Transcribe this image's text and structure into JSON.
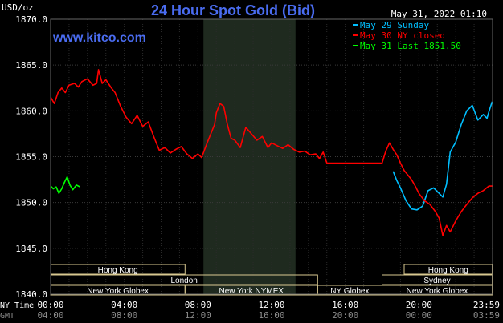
{
  "chart_data": {
    "type": "line",
    "title": "24 Hour Spot Gold (Bid)",
    "source_label": "www.kitco.com",
    "timestamp": "May 31, 2022 01:10",
    "y_unit_label": "USD/oz",
    "ylim": [
      1840,
      1870
    ],
    "y_ticks": [
      "1870.0",
      "1865.0",
      "1860.0",
      "1855.0",
      "1850.0",
      "1845.0",
      "1840.0"
    ],
    "x_axis_label_ny": "NY Time",
    "x_axis_label_gmt": "GMT",
    "x_ticks_ny": [
      "00:00",
      "04:00",
      "08:00",
      "12:00",
      "16:00",
      "20:00",
      "23:59"
    ],
    "x_ticks_gmt": [
      "04:00",
      "08:00",
      "12:00",
      "16:00",
      "20:00",
      "00:00",
      "03:59"
    ],
    "grid": true,
    "legend_position": "top-right",
    "series": [
      {
        "name": "May 29 Sunday",
        "color": "#00bfff",
        "x": [
          18.6,
          18.8,
          19.0,
          19.3,
          19.6,
          19.9,
          20.2,
          20.5,
          20.8,
          21.1,
          21.3,
          21.5,
          21.7,
          22.0,
          22.3,
          22.6,
          22.9,
          23.2,
          23.5,
          23.7,
          23.8,
          23.98
        ],
        "y": [
          1853.4,
          1852.4,
          1851.6,
          1850.2,
          1849.3,
          1849.2,
          1849.6,
          1851.3,
          1851.6,
          1851.0,
          1850.6,
          1852.0,
          1855.5,
          1856.6,
          1858.5,
          1860.0,
          1860.6,
          1859.0,
          1859.6,
          1859.2,
          1859.9,
          1861.0
        ]
      },
      {
        "name": "May 30 NY closed",
        "color": "#ff0000",
        "x": [
          0.0,
          0.2,
          0.4,
          0.6,
          0.8,
          1.0,
          1.3,
          1.5,
          1.7,
          2.0,
          2.3,
          2.5,
          2.6,
          2.8,
          3.0,
          3.3,
          3.5,
          3.8,
          4.1,
          4.4,
          4.7,
          5.0,
          5.3,
          5.6,
          5.9,
          6.2,
          6.5,
          6.8,
          7.1,
          7.4,
          7.7,
          8.0,
          8.2,
          8.5,
          8.7,
          8.9,
          9.0,
          9.2,
          9.4,
          9.6,
          9.8,
          10.0,
          10.3,
          10.6,
          10.9,
          11.2,
          11.5,
          11.8,
          12.0,
          12.3,
          12.6,
          12.9,
          13.2,
          13.5,
          13.8,
          14.1,
          14.4,
          14.6,
          14.8,
          15.0,
          15.5,
          16.0,
          16.5,
          17.0,
          17.5,
          18.0,
          18.2,
          18.4,
          18.6,
          18.8,
          19.0,
          19.2,
          19.4,
          19.6,
          19.8,
          20.0,
          20.3,
          20.6,
          20.9,
          21.1,
          21.3,
          21.5,
          21.7,
          22.0,
          22.3,
          22.6,
          22.9,
          23.2,
          23.5,
          23.8,
          23.98
        ],
        "y": [
          1861.5,
          1860.8,
          1862.0,
          1862.5,
          1862.0,
          1862.8,
          1863.0,
          1862.6,
          1863.2,
          1863.5,
          1862.8,
          1863.0,
          1864.5,
          1863.0,
          1863.4,
          1862.5,
          1862.0,
          1860.5,
          1859.3,
          1858.6,
          1859.5,
          1858.3,
          1858.8,
          1857.2,
          1855.7,
          1856.0,
          1855.4,
          1855.8,
          1856.1,
          1855.3,
          1854.8,
          1855.3,
          1854.9,
          1856.5,
          1857.5,
          1858.5,
          1859.8,
          1860.8,
          1860.5,
          1858.5,
          1857.0,
          1856.8,
          1856.0,
          1858.2,
          1857.5,
          1856.8,
          1857.2,
          1856.0,
          1856.5,
          1856.2,
          1855.9,
          1856.3,
          1855.8,
          1855.5,
          1855.6,
          1855.2,
          1855.3,
          1854.8,
          1855.5,
          1854.3,
          1854.3,
          1854.3,
          1854.3,
          1854.3,
          1854.3,
          1854.3,
          1855.6,
          1856.5,
          1855.8,
          1855.2,
          1854.3,
          1853.5,
          1853.0,
          1852.5,
          1851.8,
          1851.0,
          1850.2,
          1849.8,
          1849.0,
          1848.3,
          1846.4,
          1847.5,
          1846.8,
          1848.0,
          1849.0,
          1849.8,
          1850.5,
          1851.0,
          1851.3,
          1851.8,
          1851.8
        ]
      },
      {
        "name": "May 31 Last 1851.50",
        "color": "#00ff00",
        "x": [
          0.0,
          0.15,
          0.3,
          0.45,
          0.6,
          0.75,
          0.9,
          1.05,
          1.2,
          1.4,
          1.6
        ],
        "y": [
          1851.8,
          1851.5,
          1851.7,
          1851.0,
          1851.5,
          1852.2,
          1852.8,
          1851.9,
          1851.4,
          1851.9,
          1851.7
        ]
      }
    ],
    "session_bars": [
      {
        "label": "Hong Kong",
        "start": 0.0,
        "end": 7.3,
        "row": 0
      },
      {
        "label": "Hong Kong",
        "start": 19.2,
        "end": 23.98,
        "row": 0
      },
      {
        "label": "London",
        "start": 0.0,
        "end": 14.5,
        "row": 1
      },
      {
        "label": "Sydney",
        "start": 18.0,
        "end": 23.98,
        "row": 1
      },
      {
        "label": "New York Globex",
        "start": 0.0,
        "end": 7.3,
        "row": 2
      },
      {
        "label": "New York NYMEX",
        "start": 7.3,
        "end": 14.5,
        "row": 2
      },
      {
        "label": "NY Globex",
        "start": 14.5,
        "end": 18.0,
        "row": 2
      },
      {
        "label": "New York Globex",
        "start": 18.0,
        "end": 23.98,
        "row": 2
      }
    ],
    "shaded_region": {
      "start": 8.3,
      "end": 13.3
    }
  }
}
